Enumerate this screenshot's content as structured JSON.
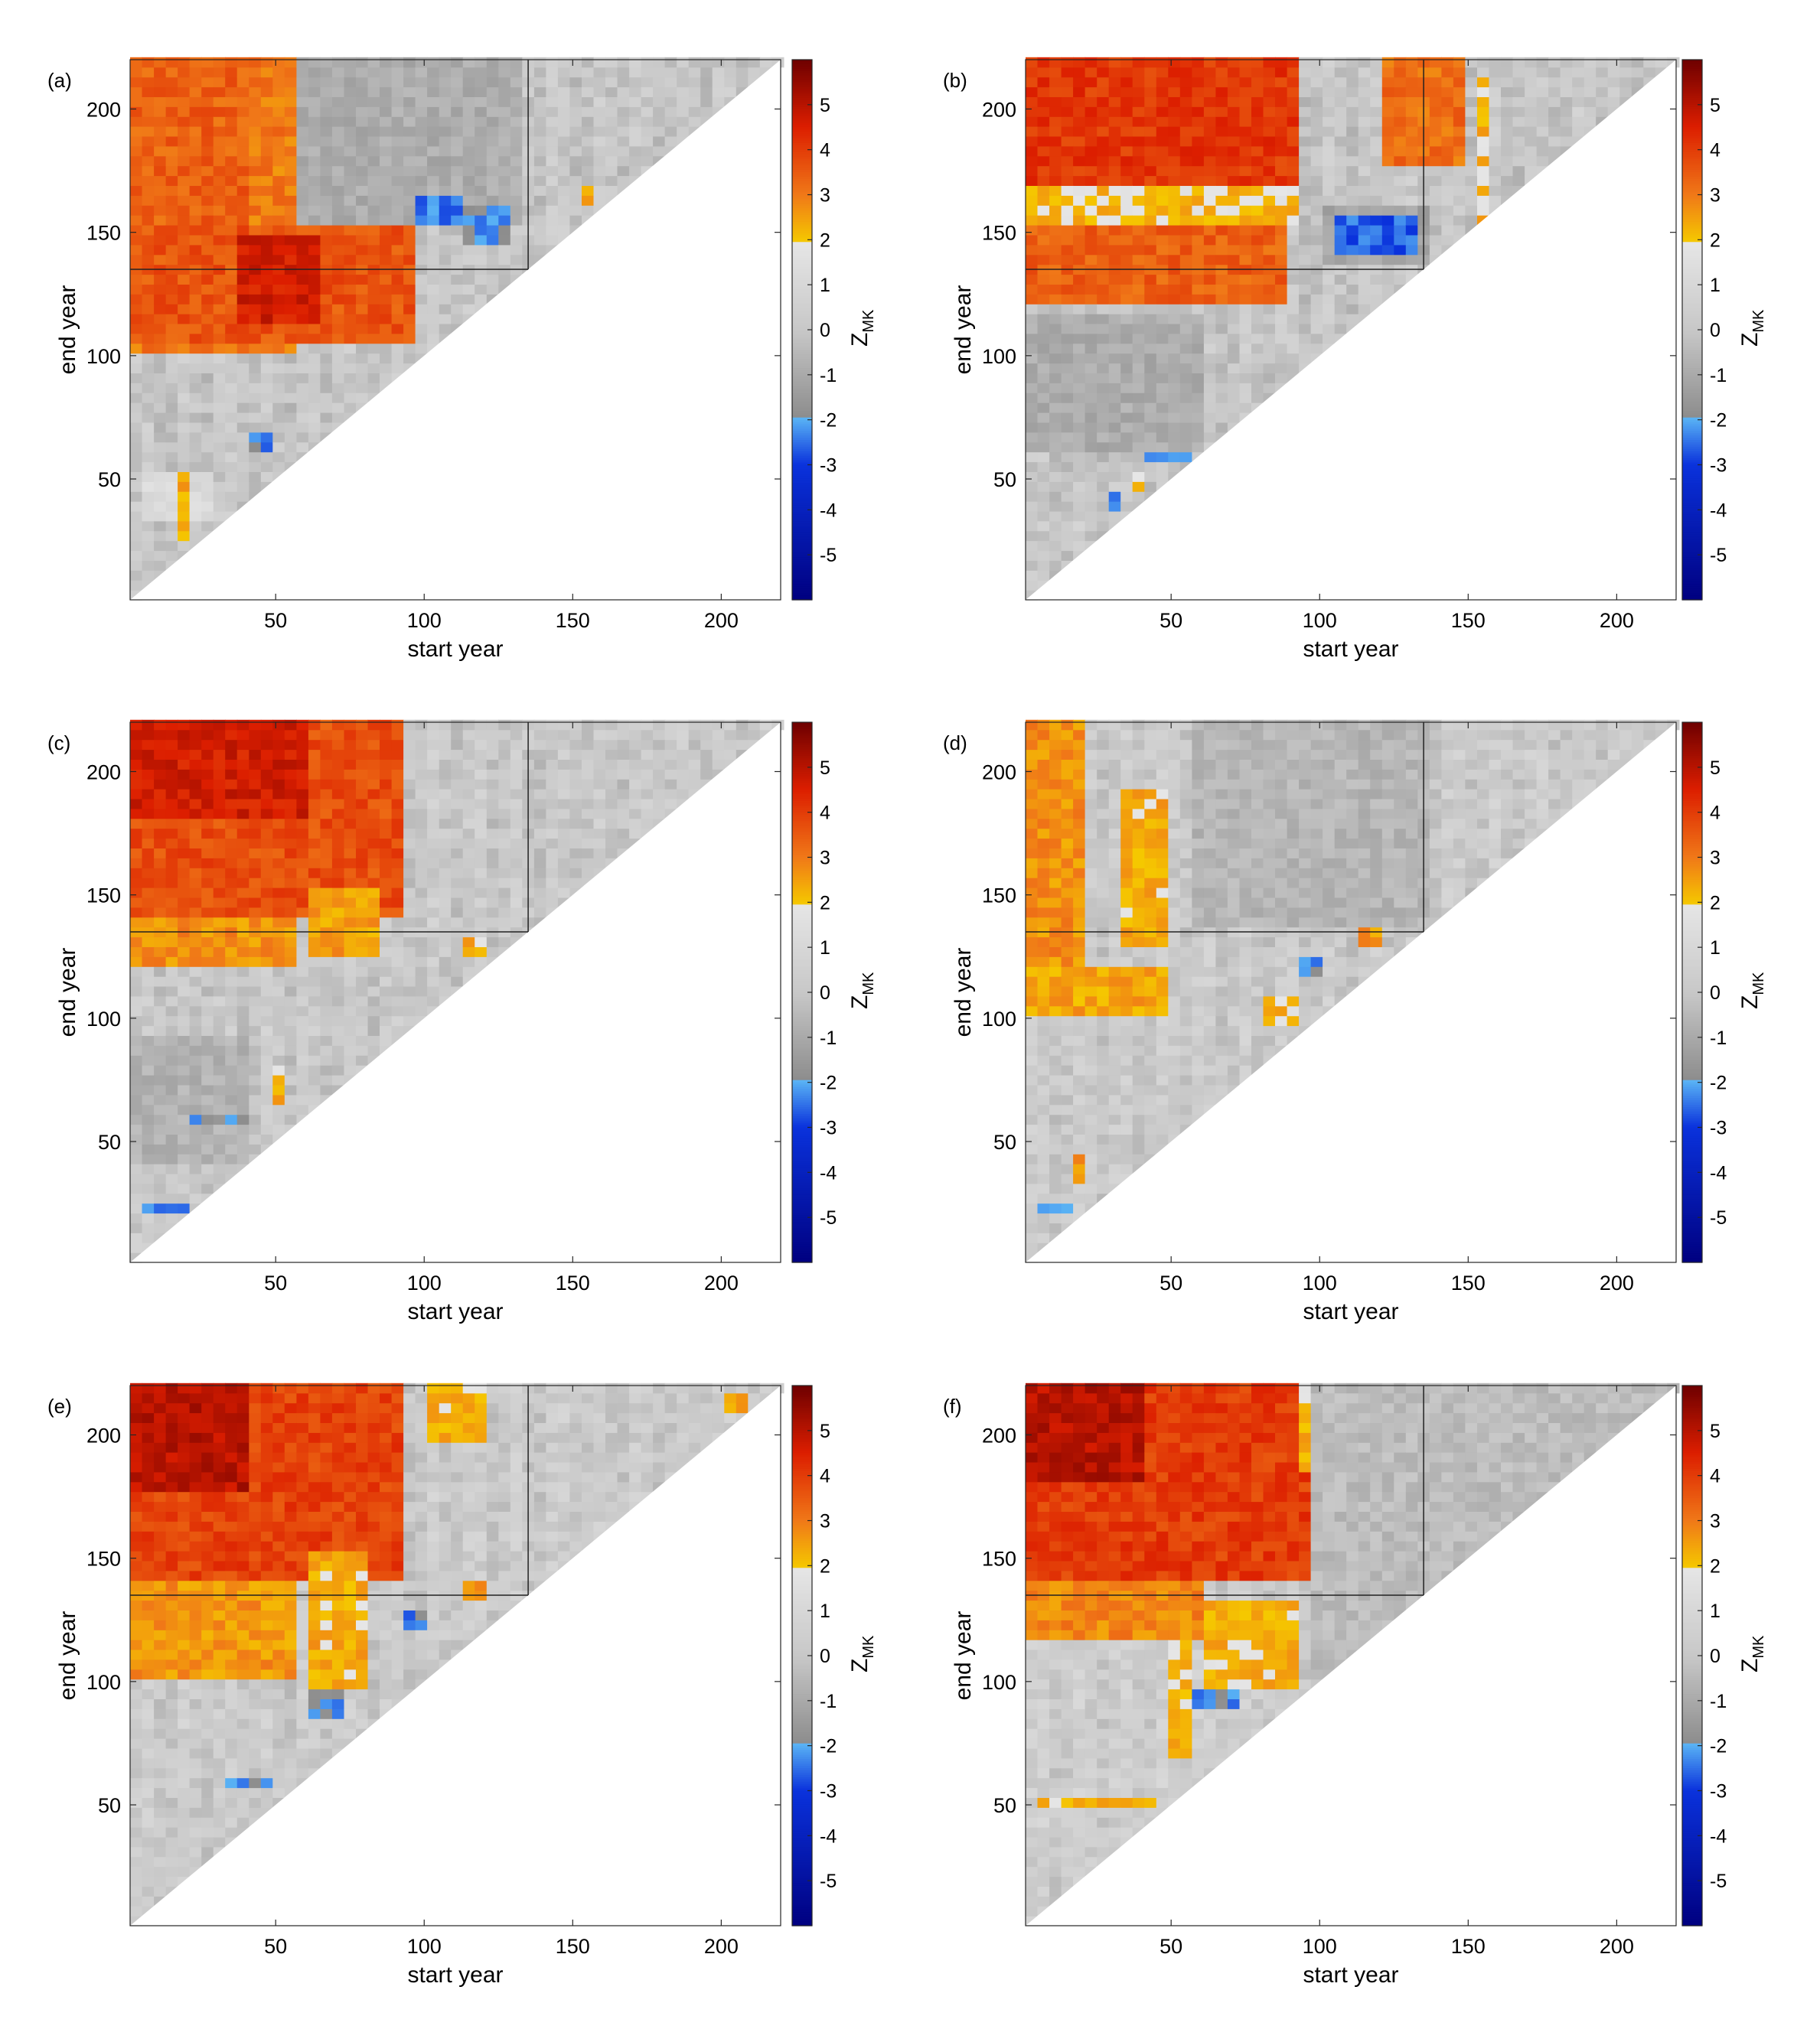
{
  "figure": {
    "background": "#ffffff"
  },
  "colorbar": {
    "label_main": "Z",
    "label_sub": "MK",
    "ticks": [
      "5",
      "4",
      "3",
      "2",
      "1",
      "0",
      "-1",
      "-2",
      "-3",
      "-4",
      "-5"
    ],
    "tick_values": [
      5,
      4,
      3,
      2,
      1,
      0,
      -1,
      -2,
      -3,
      -4,
      -5
    ],
    "range": [
      -6,
      6
    ],
    "significance_threshold": 1.96,
    "colors": {
      "neg_strong": "#000080",
      "neg_mid": "#0a32dc",
      "neg_weak": "#5ab4f5",
      "insig_low": "#8c8c8c",
      "insig_mid": "#c8c8c8",
      "insig_high": "#e6e6e6",
      "pos_weak": "#f5c800",
      "pos_mid_low": "#f07818",
      "pos_mid": "#dc1e00",
      "pos_strong": "#6e0000"
    }
  },
  "chart_data": [
    {
      "type": "heatmap",
      "panel": "(a)",
      "xlabel": "start year",
      "ylabel": "end year",
      "xlim": [
        1,
        220
      ],
      "ylim": [
        1,
        220
      ],
      "xticks": [
        50,
        100,
        150,
        200
      ],
      "yticks": [
        50,
        100,
        150,
        200
      ],
      "reference_year": 135,
      "base": 0.0,
      "regions": [
        {
          "x": [
            1,
            55
          ],
          "y": [
            100,
            220
          ],
          "z": 3.0
        },
        {
          "x": [
            1,
            95
          ],
          "y": [
            105,
            150
          ],
          "z": 3.6
        },
        {
          "x": [
            35,
            62
          ],
          "y": [
            112,
            145
          ],
          "z": 4.6
        },
        {
          "x": [
            1,
            38
          ],
          "y": [
            150,
            220
          ],
          "z": 3.4
        },
        {
          "x": [
            55,
            130
          ],
          "y": [
            150,
            220
          ],
          "z": -0.9
        },
        {
          "x": [
            95,
            112
          ],
          "y": [
            152,
            162
          ],
          "z": -2.4
        },
        {
          "x": [
            112,
            128
          ],
          "y": [
            145,
            160
          ],
          "z": -2.1
        },
        {
          "x": [
            3,
            25
          ],
          "y": [
            30,
            52
          ],
          "z": 1.2
        },
        {
          "x": [
            14,
            18
          ],
          "y": [
            22,
            50
          ],
          "z": 2.3
        },
        {
          "x": [
            38,
            45
          ],
          "y": [
            58,
            66
          ],
          "z": -2.3
        },
        {
          "x": [
            150,
            153
          ],
          "y": [
            158,
            166
          ],
          "z": 2.2
        }
      ]
    },
    {
      "type": "heatmap",
      "panel": "(b)",
      "xlabel": "start year",
      "ylabel": "end year",
      "xlim": [
        1,
        220
      ],
      "ylim": [
        1,
        220
      ],
      "xticks": [
        50,
        100,
        150,
        200
      ],
      "yticks": [
        50,
        100,
        150,
        200
      ],
      "reference_year": 135,
      "base": 0.0,
      "regions": [
        {
          "x": [
            1,
            90
          ],
          "y": [
            165,
            220
          ],
          "z": 4.1
        },
        {
          "x": [
            1,
            88
          ],
          "y": [
            120,
            150
          ],
          "z": 3.4
        },
        {
          "x": [
            1,
            90
          ],
          "y": [
            150,
            165
          ],
          "z": 2.1
        },
        {
          "x": [
            120,
            147
          ],
          "y": [
            175,
            220
          ],
          "z": 3.2
        },
        {
          "x": [
            150,
            153
          ],
          "y": [
            150,
            210
          ],
          "z": 2.2
        },
        {
          "x": [
            100,
            135
          ],
          "y": [
            135,
            160
          ],
          "z": -1.2
        },
        {
          "x": [
            105,
            132
          ],
          "y": [
            138,
            155
          ],
          "z": -2.6
        },
        {
          "x": [
            1,
            60
          ],
          "y": [
            60,
            115
          ],
          "z": -0.9
        },
        {
          "x": [
            26,
            32
          ],
          "y": [
            36,
            42
          ],
          "z": -2.3
        },
        {
          "x": [
            34,
            38
          ],
          "y": [
            42,
            50
          ],
          "z": 2.3
        },
        {
          "x": [
            38,
            55
          ],
          "y": [
            56,
            60
          ],
          "z": -2.1
        }
      ]
    },
    {
      "type": "heatmap",
      "panel": "(c)",
      "xlabel": "start year",
      "ylabel": "end year",
      "xlim": [
        1,
        220
      ],
      "ylim": [
        1,
        220
      ],
      "xticks": [
        50,
        100,
        150,
        200
      ],
      "yticks": [
        50,
        100,
        150,
        200
      ],
      "reference_year": 135,
      "base": 0.1,
      "regions": [
        {
          "x": [
            1,
            92
          ],
          "y": [
            140,
            220
          ],
          "z": 3.7
        },
        {
          "x": [
            1,
            60
          ],
          "y": [
            180,
            220
          ],
          "z": 4.6
        },
        {
          "x": [
            1,
            55
          ],
          "y": [
            118,
            140
          ],
          "z": 2.7
        },
        {
          "x": [
            60,
            82
          ],
          "y": [
            125,
            150
          ],
          "z": 2.5
        },
        {
          "x": [
            113,
            118
          ],
          "y": [
            122,
            132
          ],
          "z": 2.3
        },
        {
          "x": [
            46,
            52
          ],
          "y": [
            65,
            80
          ],
          "z": 2.2
        },
        {
          "x": [
            3,
            18
          ],
          "y": [
            19,
            23
          ],
          "z": -2.3
        },
        {
          "x": [
            1,
            40
          ],
          "y": [
            40,
            90
          ],
          "z": -0.7
        },
        {
          "x": [
            20,
            40
          ],
          "y": [
            56,
            59
          ],
          "z": -2.0
        }
      ]
    },
    {
      "type": "heatmap",
      "panel": "(d)",
      "xlabel": "start year",
      "ylabel": "end year",
      "xlim": [
        1,
        220
      ],
      "ylim": [
        1,
        220
      ],
      "xticks": [
        50,
        100,
        150,
        200
      ],
      "yticks": [
        50,
        100,
        150,
        200
      ],
      "reference_year": 135,
      "base": 0.2,
      "regions": [
        {
          "x": [
            1,
            18
          ],
          "y": [
            100,
            220
          ],
          "z": 2.7
        },
        {
          "x": [
            32,
            45
          ],
          "y": [
            128,
            190
          ],
          "z": 2.3
        },
        {
          "x": [
            1,
            45
          ],
          "y": [
            100,
            118
          ],
          "z": 2.4
        },
        {
          "x": [
            112,
            118
          ],
          "y": [
            128,
            138
          ],
          "z": 2.6
        },
        {
          "x": [
            92,
            98
          ],
          "y": [
            115,
            124
          ],
          "z": -2.3
        },
        {
          "x": [
            14,
            18
          ],
          "y": [
            32,
            42
          ],
          "z": 2.6
        },
        {
          "x": [
            3,
            14
          ],
          "y": [
            18,
            24
          ],
          "z": -2.2
        },
        {
          "x": [
            80,
            90
          ],
          "y": [
            95,
            108
          ],
          "z": 2.1
        },
        {
          "x": [
            55,
            135
          ],
          "y": [
            135,
            220
          ],
          "z": -0.6
        }
      ]
    },
    {
      "type": "heatmap",
      "panel": "(e)",
      "xlabel": "start year",
      "ylabel": "end year",
      "xlim": [
        1,
        220
      ],
      "ylim": [
        1,
        220
      ],
      "xticks": [
        50,
        100,
        150,
        200
      ],
      "yticks": [
        50,
        100,
        150,
        200
      ],
      "reference_year": 135,
      "base": 0.2,
      "regions": [
        {
          "x": [
            1,
            90
          ],
          "y": [
            140,
            220
          ],
          "z": 3.9
        },
        {
          "x": [
            1,
            40
          ],
          "y": [
            175,
            220
          ],
          "z": 5.0
        },
        {
          "x": [
            1,
            55
          ],
          "y": [
            100,
            140
          ],
          "z": 2.6
        },
        {
          "x": [
            60,
            80
          ],
          "y": [
            95,
            150
          ],
          "z": 2.3
        },
        {
          "x": [
            100,
            120
          ],
          "y": [
            195,
            220
          ],
          "z": 2.2
        },
        {
          "x": [
            110,
            118
          ],
          "y": [
            130,
            138
          ],
          "z": 2.6
        },
        {
          "x": [
            90,
            98
          ],
          "y": [
            118,
            128
          ],
          "z": -2.3
        },
        {
          "x": [
            60,
            70
          ],
          "y": [
            85,
            95
          ],
          "z": -2.2
        },
        {
          "x": [
            30,
            48
          ],
          "y": [
            56,
            60
          ],
          "z": -2.1
        },
        {
          "x": [
            200,
            205
          ],
          "y": [
            208,
            214
          ],
          "z": 2.3
        }
      ]
    },
    {
      "type": "heatmap",
      "panel": "(f)",
      "xlabel": "start year",
      "ylabel": "end year",
      "xlim": [
        1,
        220
      ],
      "ylim": [
        1,
        220
      ],
      "xticks": [
        50,
        100,
        150,
        200
      ],
      "yticks": [
        50,
        100,
        150,
        200
      ],
      "reference_year": 135,
      "base": 0.3,
      "regions": [
        {
          "x": [
            1,
            95
          ],
          "y": [
            140,
            220
          ],
          "z": 4.0
        },
        {
          "x": [
            1,
            40
          ],
          "y": [
            180,
            220
          ],
          "z": 5.0
        },
        {
          "x": [
            1,
            60
          ],
          "y": [
            115,
            140
          ],
          "z": 2.8
        },
        {
          "x": [
            90,
            130
          ],
          "y": [
            185,
            220
          ],
          "z": 2.3
        },
        {
          "x": [
            60,
            92
          ],
          "y": [
            95,
            130
          ],
          "z": 2.2
        },
        {
          "x": [
            48,
            53
          ],
          "y": [
            68,
            115
          ],
          "z": 2.2
        },
        {
          "x": [
            3,
            42
          ],
          "y": [
            47,
            51
          ],
          "z": 2.2
        },
        {
          "x": [
            55,
            70
          ],
          "y": [
            88,
            94
          ],
          "z": -2.2
        },
        {
          "x": [
            150,
            160
          ],
          "y": [
            185,
            200
          ],
          "z": 2.1
        },
        {
          "x": [
            95,
            220
          ],
          "y": [
            100,
            220
          ],
          "z": -0.4
        }
      ]
    }
  ]
}
